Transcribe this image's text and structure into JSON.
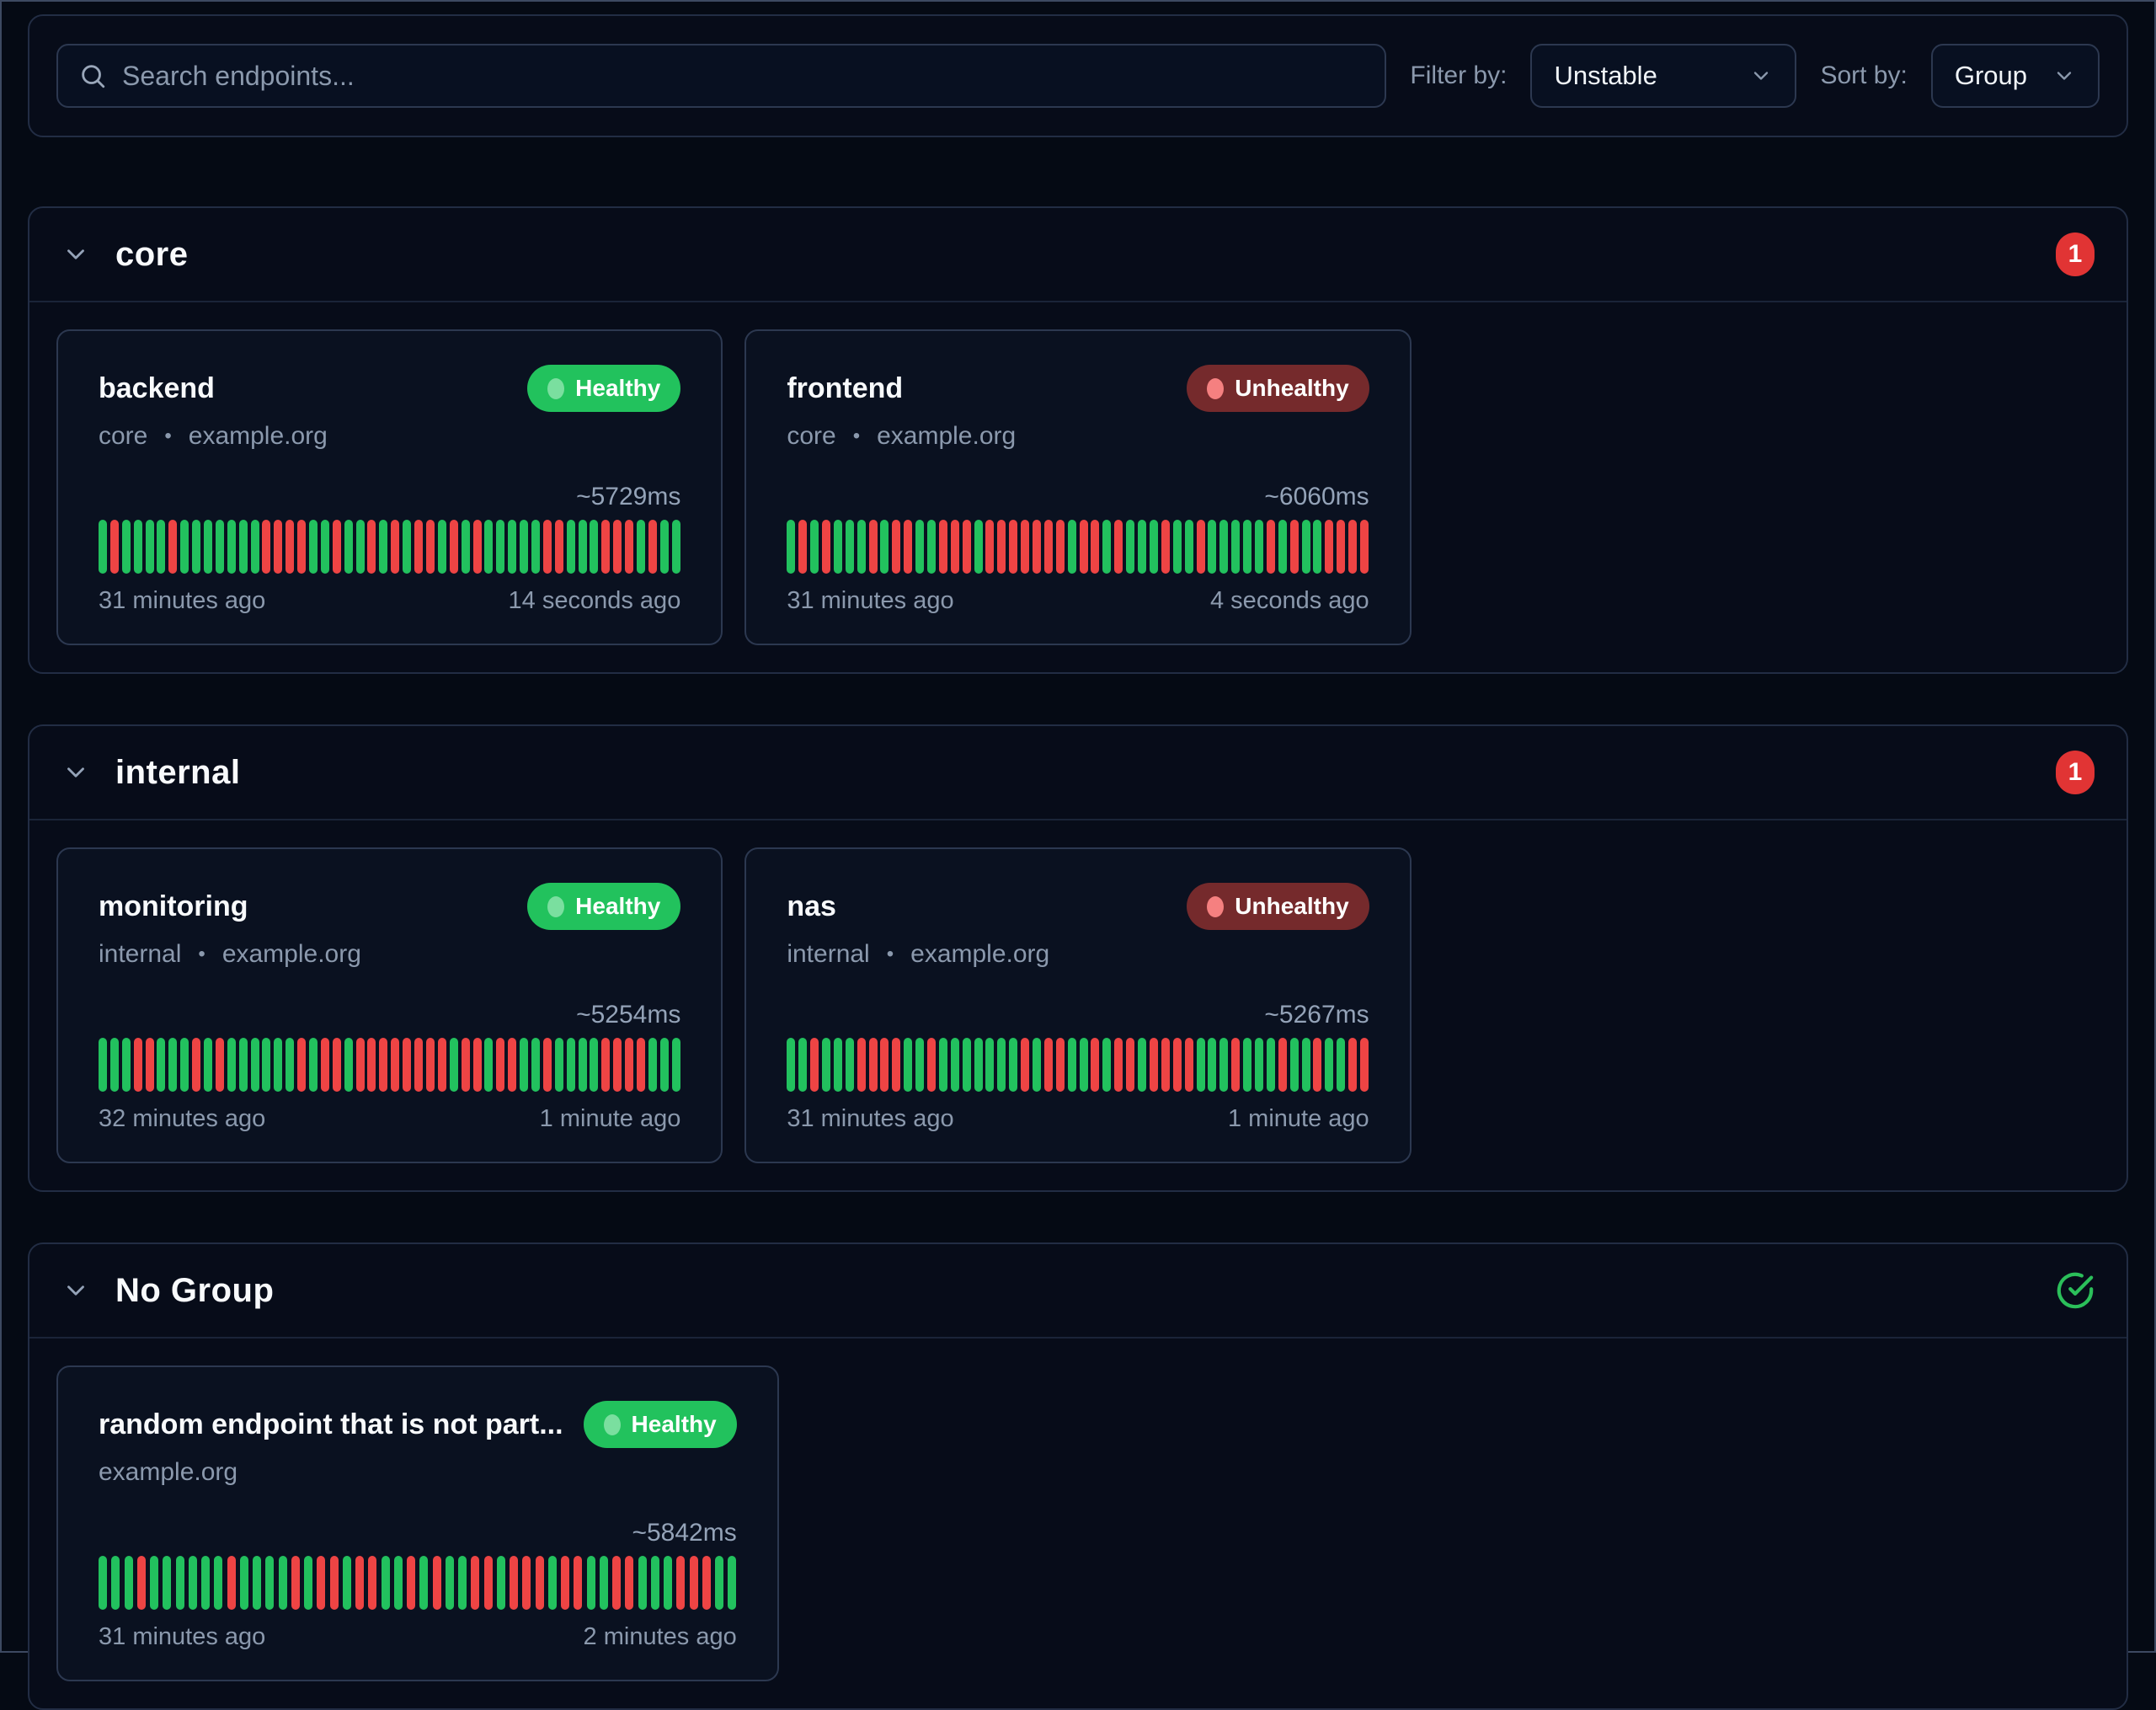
{
  "toolbar": {
    "search_placeholder": "Search endpoints...",
    "filter_label": "Filter by:",
    "filter_value": "Unstable",
    "sort_label": "Sort by:",
    "sort_value": "Group"
  },
  "colors": {
    "green": "#22c15e",
    "red": "#ee4444",
    "badge_red": "#e13434",
    "healthy_bg": "#22c25d",
    "healthy_dot": "#7adf9f",
    "unhealthy_bg": "#752a2c",
    "unhealthy_dot": "#f58080",
    "check_green": "#2bbf5a"
  },
  "groups": [
    {
      "name": "core",
      "count": "1",
      "cards": [
        {
          "name": "backend",
          "group": "core",
          "host": "example.org",
          "status": "Healthy",
          "latency": "~5729ms",
          "oldest": "31 minutes ago",
          "newest": "14 seconds ago",
          "bars": "GRGGGGRGGGGGGGRRRRGGRGGRGRGRRGRGRGGGGGRRGGGRRRGRGG"
        },
        {
          "name": "frontend",
          "group": "core",
          "host": "example.org",
          "status": "Unhealthy",
          "latency": "~6060ms",
          "oldest": "31 minutes ago",
          "newest": "4 seconds ago",
          "bars": "GRGRGGGRGRRGGRRRGRRRRRRRGRRGRGGGRGGRGGGGGRGRGGRRRR"
        }
      ]
    },
    {
      "name": "internal",
      "count": "1",
      "cards": [
        {
          "name": "monitoring",
          "group": "internal",
          "host": "example.org",
          "status": "Healthy",
          "latency": "~5254ms",
          "oldest": "32 minutes ago",
          "newest": "1 minute ago",
          "bars": "GGGRRGGGRGRGGGGGGRGRRGRRRRRRRRGRRGRRGGRGGGGRRRRGGG"
        },
        {
          "name": "nas",
          "group": "internal",
          "host": "example.org",
          "status": "Unhealthy",
          "latency": "~5267ms",
          "oldest": "31 minutes ago",
          "newest": "1 minute ago",
          "bars": "GGRGGGRRRRGGRGGGGGGGRGRRGGRGRRGRRRRGGGRGGGRGGRGGRR"
        }
      ]
    },
    {
      "name": "No Group",
      "count": "",
      "cards": [
        {
          "name": "random endpoint that is not part...",
          "group": "",
          "host": "example.org",
          "status": "Healthy",
          "latency": "~5842ms",
          "oldest": "31 minutes ago",
          "newest": "2 minutes ago",
          "bars": "GGGRGGGGGGRGGGGRGRRGRRGGRGRGGRRGRRRGRRGGRRGGGRRRGG"
        }
      ]
    }
  ]
}
